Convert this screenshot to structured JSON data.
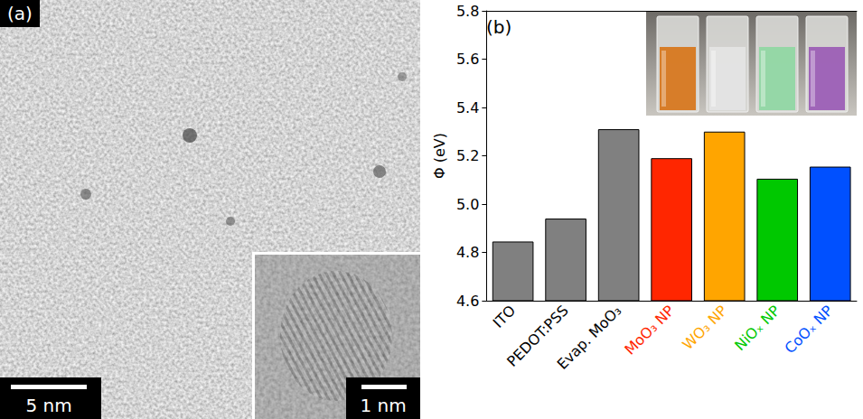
{
  "image_panel": {
    "label": "(a)",
    "scale_bar": "5 nm",
    "inset_scale_bar": "1 nm"
  },
  "chart_data": {
    "type": "bar",
    "panel_label": "(b)",
    "ylabel": "Φ (eV)",
    "categories": [
      "ITO",
      "PEDOT:PSS",
      "Evap. MoO₃",
      "MoO₃ NP",
      "WO₃ NP",
      "NiOₓ NP",
      "CoOₓ NP"
    ],
    "values": [
      4.845,
      4.94,
      5.31,
      5.19,
      5.3,
      5.105,
      5.155
    ],
    "colors": [
      "#808080",
      "#808080",
      "#808080",
      "#ff2600",
      "#ffa500",
      "#00c800",
      "#0050ff"
    ],
    "ylim": [
      4.6,
      5.8
    ],
    "yticks": [
      4.6,
      4.8,
      {
        "value": 5,
        "label": "5.0"
      },
      5.2,
      5.4,
      5.6,
      5.8
    ],
    "grid": false
  }
}
